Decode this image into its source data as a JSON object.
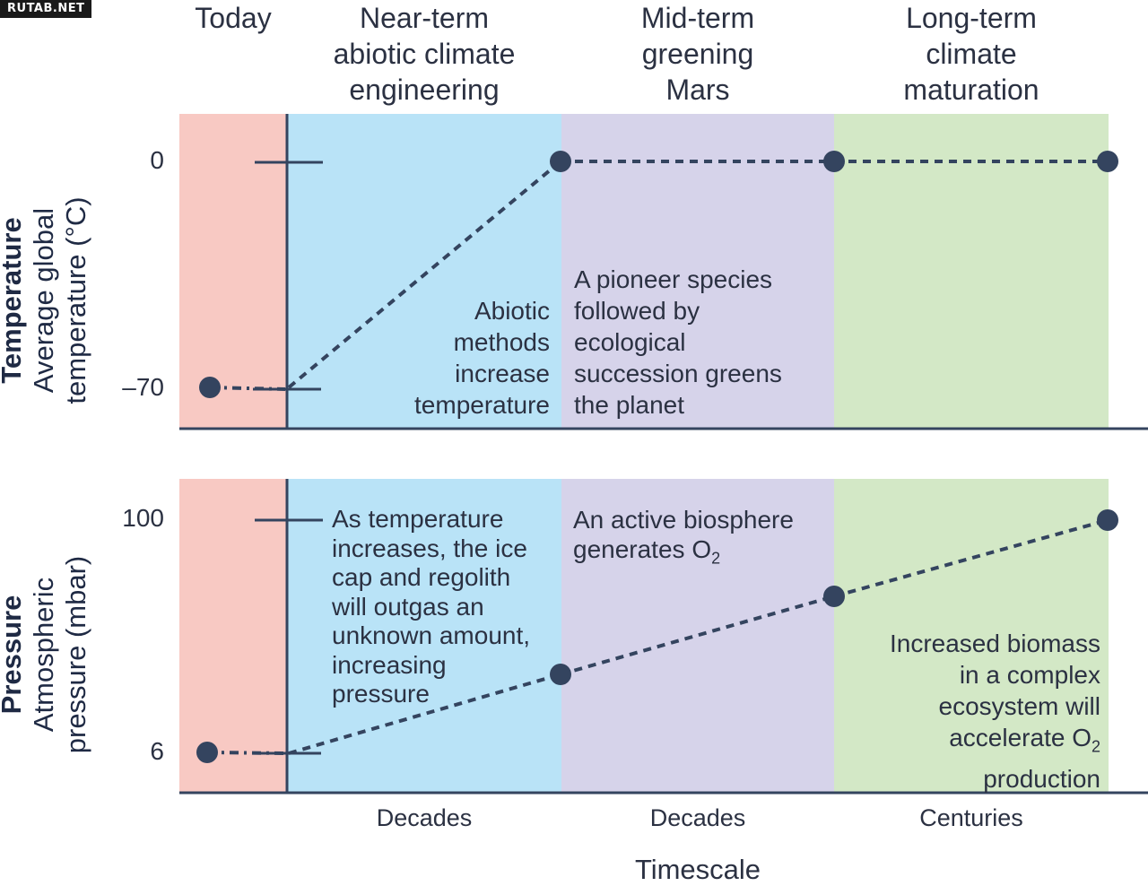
{
  "watermark": "RUTAB.NET",
  "phases": [
    {
      "label_lines": [
        "Today"
      ]
    },
    {
      "label_lines": [
        "Near-term",
        "abiotic climate",
        "engineering"
      ]
    },
    {
      "label_lines": [
        "Mid-term",
        "greening",
        "Mars"
      ]
    },
    {
      "label_lines": [
        "Long-term",
        "climate",
        "maturation"
      ]
    }
  ],
  "colors": {
    "today": "#f8c9c3",
    "near_term": "#b9e3f7",
    "mid_term": "#d6d3ea",
    "long_term": "#d3e8c6",
    "line": "#34445f"
  },
  "temperature_panel": {
    "title": "Temperature",
    "ylabel_lines": [
      "Average global",
      "temperature (°C)"
    ],
    "ticks": [
      "0",
      "–70"
    ],
    "note_abiotic": [
      "Abiotic",
      "methods",
      "increase",
      "temperature"
    ],
    "note_pioneer": [
      "A pioneer species",
      "followed by",
      "ecological",
      "succession greens",
      "the planet"
    ]
  },
  "pressure_panel": {
    "title": "Pressure",
    "ylabel_lines": [
      "Atmospheric",
      "pressure (mbar)"
    ],
    "ticks": [
      "100",
      "6"
    ],
    "note_outgas": [
      "As temperature",
      "increases, the ice",
      "cap and regolith",
      "will outgas an",
      "unknown amount,",
      "increasing",
      "pressure"
    ],
    "note_biosphere_line1": "An active biosphere",
    "note_biosphere_line2": "generates O",
    "note_biosphere_sub": "2",
    "note_biomass_lines": [
      "Increased biomass",
      "in a complex",
      "ecosystem will"
    ],
    "note_biomass_line4": "accelerate O",
    "note_biomass_sub": "2",
    "note_biomass_line5": "production"
  },
  "timescales": [
    "Decades",
    "Decades",
    "Centuries"
  ],
  "xlabel": "Timescale"
}
